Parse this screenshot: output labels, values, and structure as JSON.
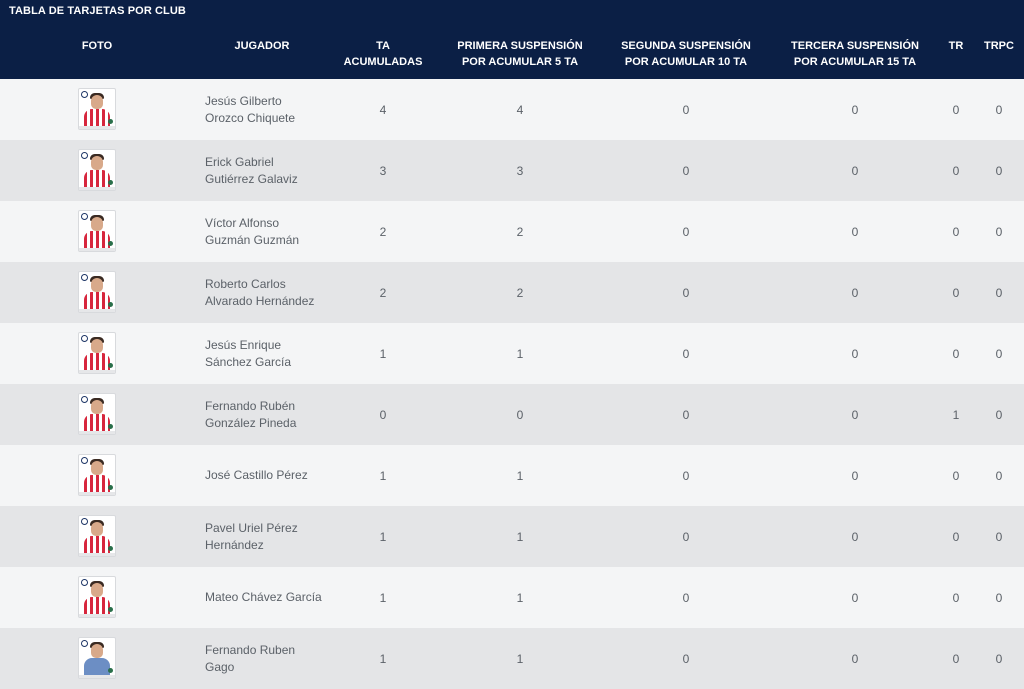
{
  "table_title": "TABLA DE TARJETAS POR CLUB",
  "columns": {
    "foto": "FOTO",
    "jugador": "JUGADOR",
    "ta_1": "TA",
    "ta_2": "ACUMULADAS",
    "primera_1": "PRIMERA SUSPENSIÓN",
    "primera_2": "POR ACUMULAR 5 TA",
    "segunda_1": "SEGUNDA SUSPENSIÓN",
    "segunda_2": "POR ACUMULAR 10 TA",
    "tercera_1": "TERCERA SUSPENSIÓN",
    "tercera_2": "POR ACUMULAR 15 TA",
    "tr": "TR",
    "trpc": "TRPC"
  },
  "rows": [
    {
      "name_1": "Jesús Gilberto",
      "name_2": "Orozco Chiquete",
      "ta": "4",
      "primera": "4",
      "segunda": "0",
      "tercera": "0",
      "tr": "0",
      "trpc": "0",
      "photo_icon": "player-photo"
    },
    {
      "name_1": "Erick Gabriel",
      "name_2": "Gutiérrez Galaviz",
      "ta": "3",
      "primera": "3",
      "segunda": "0",
      "tercera": "0",
      "tr": "0",
      "trpc": "0",
      "photo_icon": "player-photo"
    },
    {
      "name_1": "Víctor Alfonso",
      "name_2": "Guzmán Guzmán",
      "ta": "2",
      "primera": "2",
      "segunda": "0",
      "tercera": "0",
      "tr": "0",
      "trpc": "0",
      "photo_icon": "player-photo"
    },
    {
      "name_1": "Roberto Carlos",
      "name_2": "Alvarado Hernández",
      "ta": "2",
      "primera": "2",
      "segunda": "0",
      "tercera": "0",
      "tr": "0",
      "trpc": "0",
      "photo_icon": "player-photo"
    },
    {
      "name_1": "Jesús Enrique",
      "name_2": "Sánchez García",
      "ta": "1",
      "primera": "1",
      "segunda": "0",
      "tercera": "0",
      "tr": "0",
      "trpc": "0",
      "photo_icon": "player-photo"
    },
    {
      "name_1": "Fernando Rubén",
      "name_2": "González Pineda",
      "ta": "0",
      "primera": "0",
      "segunda": "0",
      "tercera": "0",
      "tr": "1",
      "trpc": "0",
      "photo_icon": "player-photo"
    },
    {
      "name_1": "José Castillo Pérez",
      "name_2": "",
      "ta": "1",
      "primera": "1",
      "segunda": "0",
      "tercera": "0",
      "tr": "0",
      "trpc": "0",
      "photo_icon": "player-photo"
    },
    {
      "name_1": "Pavel Uriel Pérez",
      "name_2": "Hernández",
      "ta": "1",
      "primera": "1",
      "segunda": "0",
      "tercera": "0",
      "tr": "0",
      "trpc": "0",
      "photo_icon": "player-photo"
    },
    {
      "name_1": "Mateo Chávez García",
      "name_2": "",
      "ta": "1",
      "primera": "1",
      "segunda": "0",
      "tercera": "0",
      "tr": "0",
      "trpc": "0",
      "photo_icon": "player-photo"
    },
    {
      "name_1": "Fernando Ruben",
      "name_2": "Gago",
      "ta": "1",
      "primera": "1",
      "segunda": "0",
      "tercera": "0",
      "tr": "0",
      "trpc": "0",
      "photo_icon": "coach-photo"
    }
  ],
  "colors": {
    "header_bg": "#0b1f45",
    "row_light": "#f4f5f6",
    "row_dark": "#e4e5e7",
    "shirt_red": "#d7263d"
  }
}
